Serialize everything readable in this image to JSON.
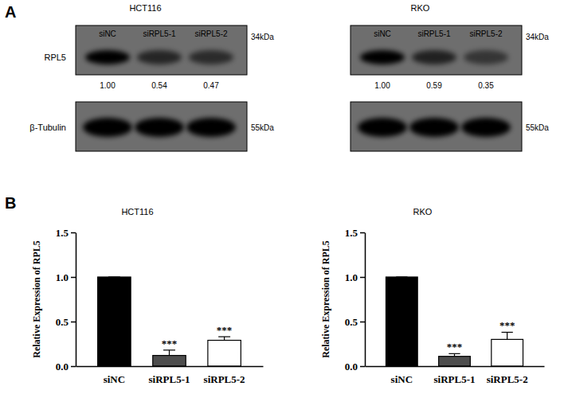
{
  "panel_labels": [
    "A",
    "B"
  ],
  "blots": [
    {
      "title": "HCT116",
      "lanes": [
        "siNC",
        "siRPL5-1",
        "siRPL5-2"
      ],
      "rows": [
        {
          "label": "RPL5",
          "size": "34kDa",
          "quantification": [
            1.0,
            0.54,
            0.47
          ],
          "quantification_labels": [
            "1.00",
            "0.54",
            "0.47"
          ]
        },
        {
          "label": "β-Tubulin",
          "size": "55kDa"
        }
      ]
    },
    {
      "title": "RKO",
      "lanes": [
        "siNC",
        "siRPL5-1",
        "siRPL5-2"
      ],
      "rows": [
        {
          "size": "34kDa",
          "quantification": [
            1.0,
            0.59,
            0.35
          ],
          "quantification_labels": [
            "1.00",
            "0.59",
            "0.35"
          ]
        },
        {
          "size": "55kDa"
        }
      ]
    }
  ],
  "chart_data": [
    {
      "type": "bar",
      "title": "HCT116",
      "y_label": "Relative Expression of RPL5",
      "categories": [
        "siNC",
        "siRPL5-1",
        "siRPL5-2"
      ],
      "values": [
        1.0,
        0.12,
        0.29
      ],
      "errors": [
        0,
        0.06,
        0.04
      ],
      "significance": [
        null,
        "***",
        "***"
      ],
      "colors": [
        "#000000",
        "#4d4d4d",
        "#ffffff"
      ],
      "ylim": [
        0,
        1.5
      ],
      "yticks": [
        {
          "value": 0,
          "label": "0.0"
        },
        {
          "value": 0.5,
          "label": "0.5"
        },
        {
          "value": 1.0,
          "label": "1.0"
        },
        {
          "value": 1.5,
          "label": "1.5"
        }
      ]
    },
    {
      "type": "bar",
      "title": "RKO",
      "y_label": "Relative Expression of RPL5",
      "categories": [
        "siNC",
        "siRPL5-1",
        "siRPL5-2"
      ],
      "values": [
        1.0,
        0.11,
        0.3
      ],
      "errors": [
        0,
        0.03,
        0.08
      ],
      "significance": [
        null,
        "***",
        "***"
      ],
      "colors": [
        "#000000",
        "#4d4d4d",
        "#ffffff"
      ],
      "ylim": [
        0,
        1.5
      ],
      "yticks": [
        {
          "value": 0,
          "label": "0.0"
        },
        {
          "value": 0.5,
          "label": "0.5"
        },
        {
          "value": 1.0,
          "label": "1.0"
        },
        {
          "value": 1.5,
          "label": "1.5"
        }
      ]
    }
  ]
}
